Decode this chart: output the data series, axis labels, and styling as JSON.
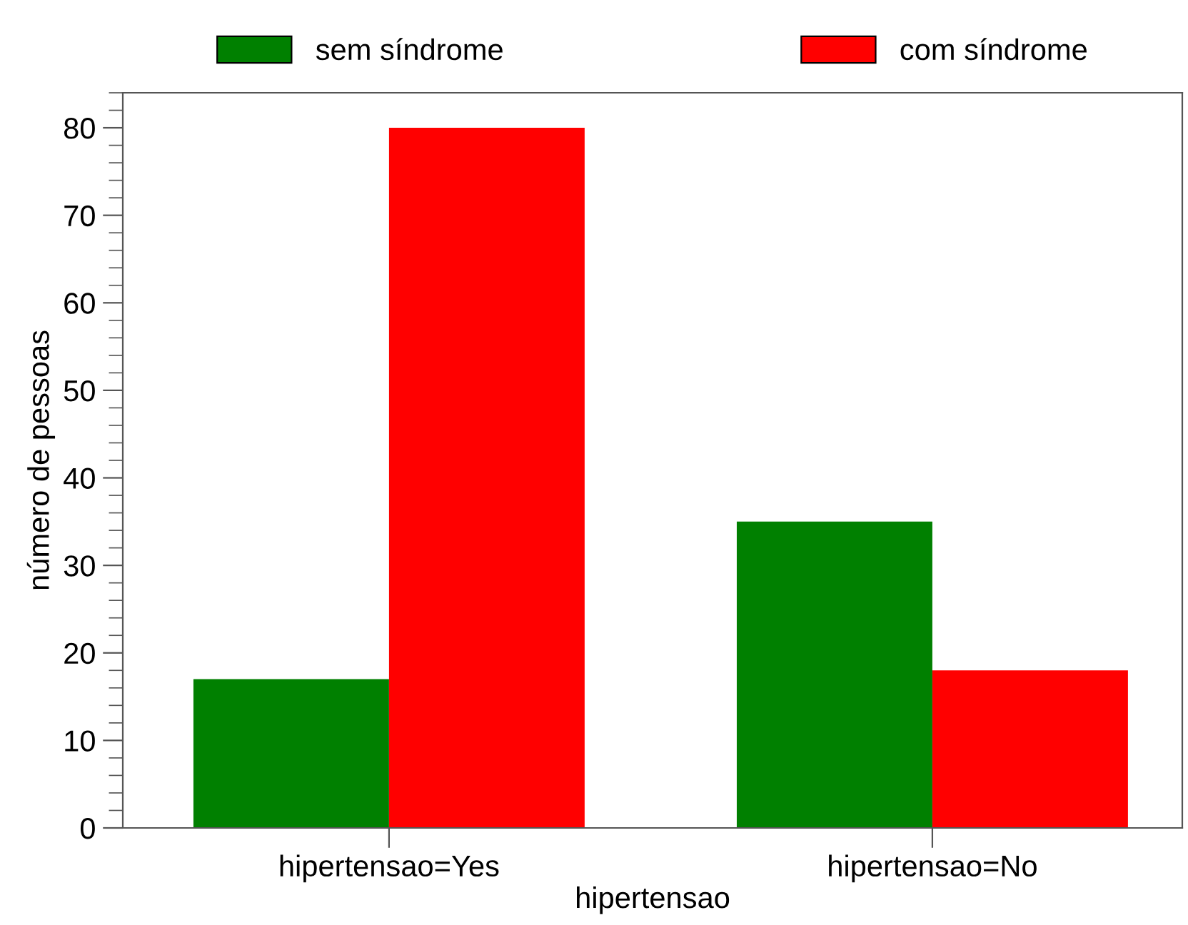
{
  "chart_data": {
    "type": "bar",
    "xlabel": "hipertensao",
    "ylabel": "número de pessoas",
    "categories": [
      "hipertensao=Yes",
      "hipertensao=No"
    ],
    "series": [
      {
        "name": "sem síndrome",
        "color": "#008000",
        "values": [
          17,
          35
        ]
      },
      {
        "name": "com síndrome",
        "color": "#ff0000",
        "values": [
          80,
          18
        ]
      }
    ],
    "ylim": [
      0,
      84
    ],
    "yticks": [
      0,
      10,
      20,
      30,
      40,
      50,
      60,
      70,
      80
    ],
    "grid": false,
    "legend": "top"
  }
}
